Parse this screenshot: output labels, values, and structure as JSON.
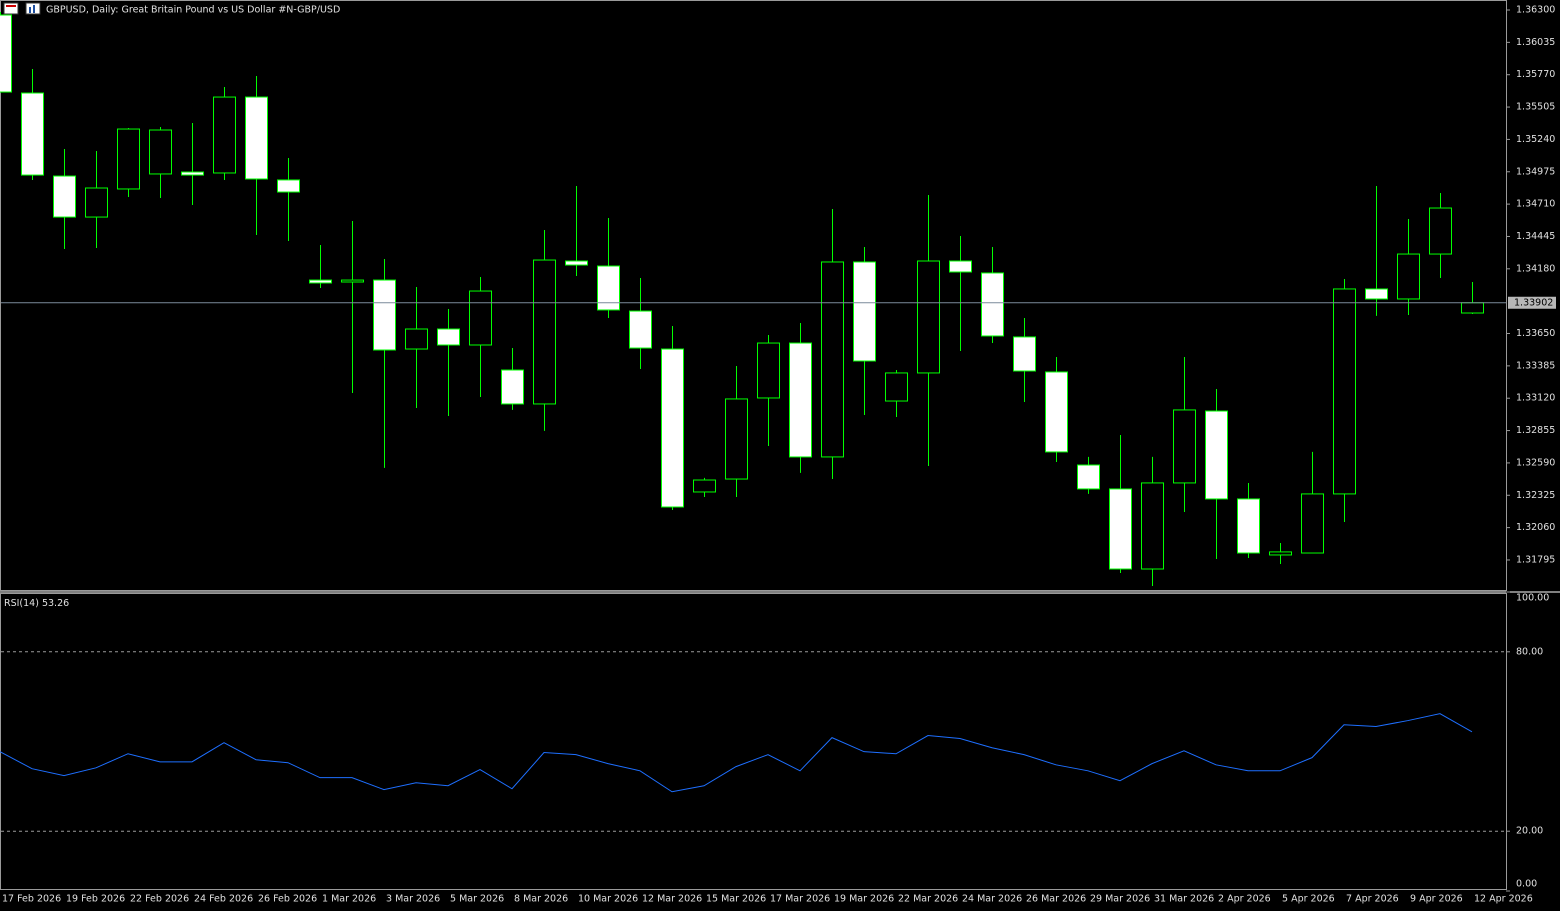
{
  "chart_data": [
    {
      "type": "candlestick",
      "title": "GBPUSD, Daily:  Great Britain Pound vs US Dollar #N-GBP/USD",
      "categories": [
        "17 Feb 2026",
        null,
        "19 Feb 2026",
        null,
        "22 Feb 2026",
        null,
        "24 Feb 2026",
        null,
        "26 Feb 2026",
        null,
        "1 Mar 2026",
        null,
        "3 Mar 2026",
        null,
        "5 Mar 2026",
        null,
        "8 Mar 2026",
        null,
        "10 Mar 2026",
        null,
        "12 Mar 2026",
        null,
        "15 Mar 2026",
        null,
        "17 Mar 2026",
        null,
        "19 Mar 2026",
        null,
        "22 Mar 2026",
        null,
        "24 Mar 2026",
        null,
        "26 Mar 2026",
        null,
        "29 Mar 2026",
        null,
        "31 Mar 2026",
        null,
        "2 Apr 2026",
        null,
        "5 Apr 2026",
        null,
        "7 Apr 2026",
        null,
        "9 Apr 2026",
        null,
        "12 Apr 2026"
      ],
      "open": [
        1.36259,
        1.3562,
        1.3494,
        1.34604,
        1.34834,
        1.34957,
        1.34973,
        1.34965,
        1.35587,
        1.34908,
        1.34088,
        1.34072,
        1.34088,
        1.33523,
        1.33687,
        1.33556,
        1.33351,
        1.33073,
        1.34244,
        1.34203,
        1.33834,
        1.33523,
        1.32352,
        1.32458,
        1.33122,
        1.33572,
        1.32639,
        1.34236,
        1.33097,
        1.33327,
        1.34244,
        1.34146,
        1.33622,
        1.33335,
        1.32573,
        1.32377,
        1.31721,
        1.32426,
        1.33015,
        1.32295,
        1.31836,
        1.31852,
        1.32336,
        1.34015,
        1.33933,
        1.34301,
        1.33818
      ],
      "high": [
        1.36284,
        1.35817,
        1.35161,
        1.35145,
        1.35333,
        1.35342,
        1.35374,
        1.35669,
        1.35759,
        1.35088,
        1.34375,
        1.34572,
        1.3426,
        1.34031,
        1.33851,
        1.34113,
        1.33531,
        1.34498,
        1.34858,
        1.34596,
        1.34105,
        1.33712,
        1.32467,
        1.33384,
        1.33638,
        1.33736,
        1.3467,
        1.34359,
        1.33351,
        1.34785,
        1.34449,
        1.34359,
        1.33777,
        1.33458,
        1.32639,
        1.32819,
        1.32639,
        1.33458,
        1.33196,
        1.32426,
        1.31934,
        1.3268,
        1.34097,
        1.34858,
        1.34588,
        1.34801,
        1.34072
      ],
      "low": [
        1.35628,
        1.34908,
        1.34342,
        1.34351,
        1.34768,
        1.3476,
        1.34703,
        1.34908,
        1.34457,
        1.34408,
        1.34023,
        1.33163,
        1.32549,
        1.3304,
        1.32974,
        1.3313,
        1.33024,
        1.32852,
        1.34121,
        1.33777,
        1.33359,
        1.32204,
        1.32311,
        1.32311,
        1.32729,
        1.32508,
        1.32458,
        1.32983,
        1.32966,
        1.32565,
        1.33507,
        1.33572,
        1.33089,
        1.32598,
        1.32336,
        1.31688,
        1.31582,
        1.32188,
        1.31803,
        1.31811,
        1.31762,
        1.31852,
        1.32106,
        1.33794,
        1.33802,
        1.34105,
        1.3381
      ],
      "close": [
        1.35628,
        1.34948,
        1.34604,
        1.34842,
        1.35325,
        1.35317,
        1.34948,
        1.35587,
        1.34916,
        1.34809,
        1.34064,
        1.34088,
        1.33515,
        1.33687,
        1.33556,
        1.33998,
        1.33073,
        1.34252,
        1.34211,
        1.33843,
        1.33531,
        1.32229,
        1.3245,
        1.33114,
        1.33572,
        1.32639,
        1.34236,
        1.33425,
        1.33327,
        1.34244,
        1.34154,
        1.3363,
        1.33343,
        1.3268,
        1.32377,
        1.31721,
        1.32426,
        1.33024,
        1.32295,
        1.31852,
        1.31861,
        1.32336,
        1.34015,
        1.33933,
        1.34301,
        1.34678,
        1.33902
      ],
      "bull_color": "#000000",
      "bear_color": "#ffffff",
      "wick_color": "#00ff00",
      "ylim": [
        1.31549,
        1.36382
      ],
      "yticks": [
        {
          "value": 1.363,
          "label": "1.36300"
        },
        1.36035,
        {
          "value": 1.3577,
          "label": "1.35770"
        },
        1.35505,
        {
          "value": 1.3524,
          "label": "1.35240"
        },
        1.34975,
        {
          "value": 1.3471,
          "label": "1.34710"
        },
        1.34445,
        {
          "value": 1.3418,
          "label": "1.34180"
        },
        {
          "value": 1.3365,
          "label": "1.33650"
        },
        1.33385,
        {
          "value": 1.3312,
          "label": "1.33120"
        },
        1.32855,
        {
          "value": 1.3259,
          "label": "1.32590"
        },
        1.32325,
        {
          "value": 1.3206,
          "label": "1.32060"
        },
        1.31795
      ]
    },
    {
      "type": "line",
      "name": "RSI(14)",
      "color": "#1e6fff",
      "values": [
        46.6,
        40.9,
        38.6,
        41.2,
        45.9,
        43.2,
        43.2,
        49.6,
        43.9,
        42.9,
        37.9,
        37.9,
        33.9,
        36.2,
        35.2,
        40.6,
        34.2,
        46.3,
        45.6,
        42.6,
        40.2,
        33.2,
        35.2,
        41.6,
        45.6,
        40.2,
        51.3,
        46.6,
        45.9,
        52.0,
        51.0,
        47.9,
        45.6,
        42.2,
        40.2,
        36.9,
        42.6,
        46.9,
        42.2,
        40.2,
        40.2,
        44.6,
        55.6,
        55.0,
        57.0,
        59.3,
        53.26
      ],
      "ylim": [
        0,
        100
      ],
      "yticks": [
        {
          "value": 100,
          "label": "100.00"
        },
        {
          "value": 80,
          "label": "80.00"
        },
        {
          "value": 20,
          "label": "20.00"
        },
        {
          "value": 0,
          "label": "0.00"
        }
      ]
    }
  ]
}
